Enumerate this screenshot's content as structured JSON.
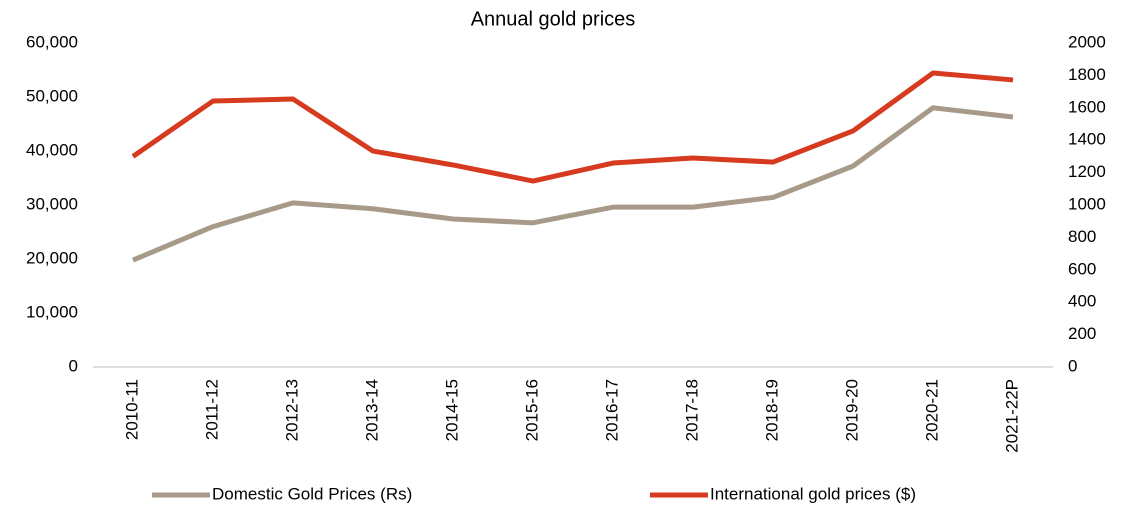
{
  "chart_data": {
    "type": "line",
    "title": "Annual gold prices",
    "categories": [
      "2010-11",
      "2011-12",
      "2012-13",
      "2013-14",
      "2014-15",
      "2015-16",
      "2016-17",
      "2017-18",
      "2018-19",
      "2019-20",
      "2020-21",
      "2021-22P"
    ],
    "series": [
      {
        "name": "Domestic Gold Prices (Rs)",
        "color": "#a89a88",
        "values": [
          19800,
          26000,
          30400,
          29300,
          27400,
          26700,
          29600,
          29600,
          31400,
          37200,
          48000,
          46300
        ]
      },
      {
        "name": "International gold prices ($)",
        "color": "#d63a1f",
        "axis": "y2",
        "values": [
          1300,
          1642,
          1654,
          1333,
          1247,
          1148,
          1259,
          1290,
          1265,
          1457,
          1815,
          1772
        ]
      }
    ],
    "ylim": [
      0,
      60000
    ],
    "yticks": [
      0,
      {
        "value": 10000,
        "label": "10,000"
      },
      {
        "value": 20000,
        "label": "20,000"
      },
      {
        "value": 30000,
        "label": "30,000"
      },
      {
        "value": 40000,
        "label": "40,000"
      },
      {
        "value": 50000,
        "label": "50,000"
      },
      {
        "value": 60000,
        "label": "60,000"
      }
    ],
    "y2lim": [
      0,
      2000
    ],
    "y2ticks": [
      0,
      200,
      400,
      600,
      800,
      1000,
      1200,
      1400,
      1600,
      1800,
      2000
    ],
    "grid": false,
    "legend": "bottom"
  }
}
